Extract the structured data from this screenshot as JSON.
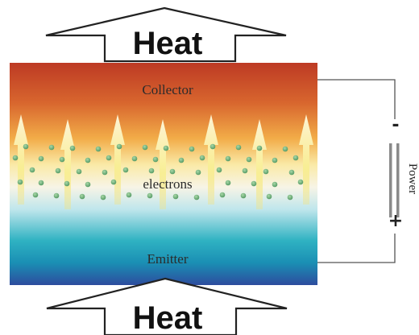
{
  "heat_top": {
    "label": "Heat"
  },
  "heat_bottom": {
    "label": "Heat"
  },
  "layers": {
    "collector": "Collector",
    "electrons": "electrons",
    "emitter": "Emitter"
  },
  "power": {
    "label": "Power",
    "negative_symbol": "-",
    "positive_symbol": "+"
  },
  "colors": {
    "collector_red": "#c23b22",
    "mid_orange": "#f0a040",
    "pale_yellow": "#fbf3c0",
    "emitter_teal": "#18a8b8",
    "emitter_blue": "#2e4fa6",
    "electron_dot": "#6fae7a",
    "heat_ray": "#f6ec8c"
  }
}
